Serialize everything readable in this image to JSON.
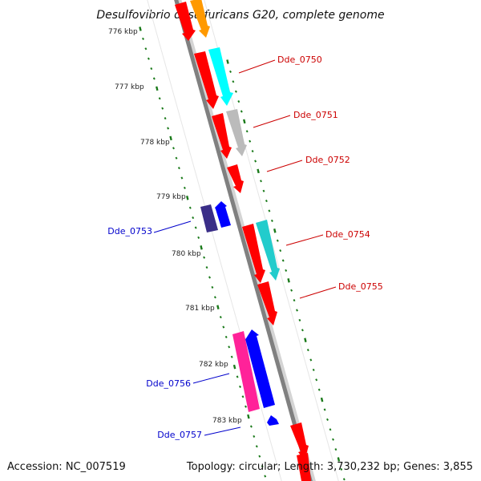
{
  "title": "Desulfovibrio desulfuricans G20, complete genome",
  "footer": {
    "accession": "Accession: NC_007519",
    "topology": "Topology: circular; Length: 3,730,232 bp; Genes: 3,855"
  },
  "kbp_ticks": [
    "776 kbp",
    "777 kbp",
    "778 kbp",
    "779 kbp",
    "780 kbp",
    "781 kbp",
    "782 kbp",
    "783 kbp"
  ],
  "gene_labels": {
    "Dde_0750": "Dde_0750",
    "Dde_0751": "Dde_0751",
    "Dde_0752": "Dde_0752",
    "Dde_0753": "Dde_0753",
    "Dde_0754": "Dde_0754",
    "Dde_0755": "Dde_0755",
    "Dde_0756": "Dde_0756",
    "Dde_0757": "Dde_0757"
  },
  "colors": {
    "forward_label": "#cc0000",
    "reverse_label": "#0000cc",
    "backbone": "#808080",
    "tick": "#1a7a1a",
    "red": "#ff0000",
    "orange": "#ff9900",
    "cyan": "#00e5e5",
    "teal": "#22cccc",
    "gray": "#bbbbbb",
    "navy": "#3a2e88",
    "blue": "#0000ff",
    "magenta": "#ff2299"
  }
}
